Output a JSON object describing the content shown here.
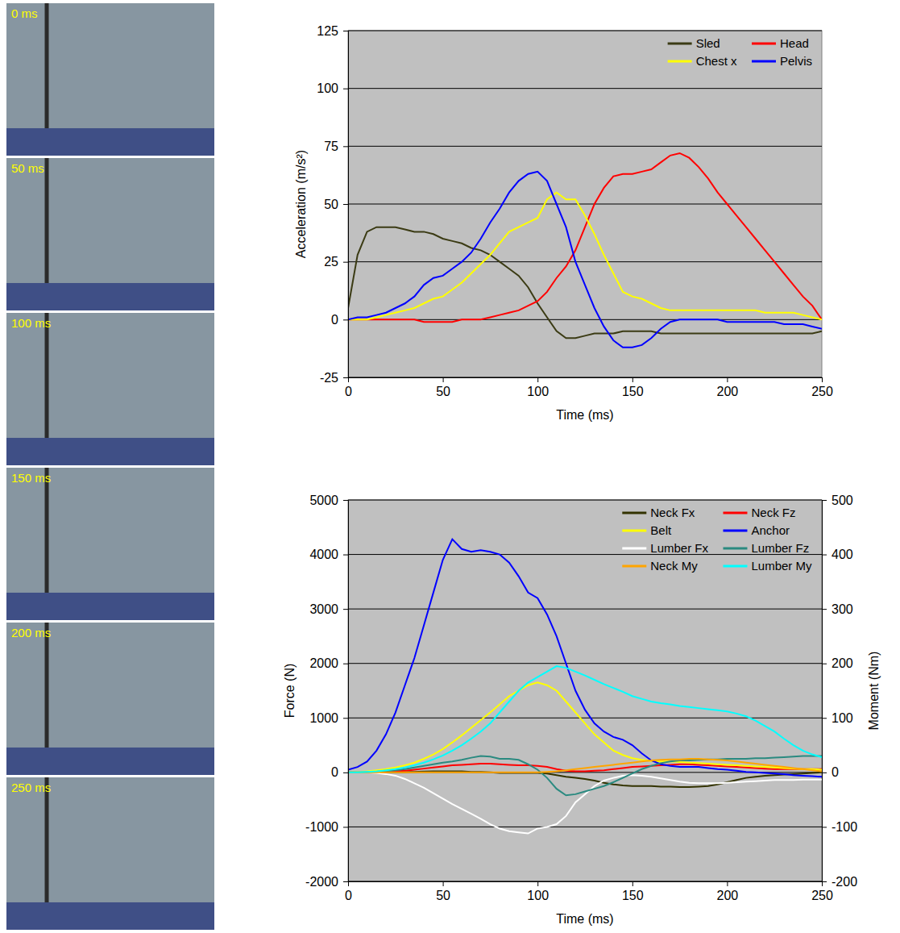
{
  "photos": {
    "labels": [
      "0 ms",
      "50 ms",
      "100 ms",
      "150 ms",
      "200 ms",
      "250 ms"
    ]
  },
  "chart_data": [
    {
      "type": "line",
      "xlabel": "Time (ms)",
      "ylabel": "Acceleration (m/s²)",
      "xlim": [
        0,
        250
      ],
      "xticks": [
        0,
        50,
        100,
        150,
        200,
        250
      ],
      "ylim": [
        -25,
        125
      ],
      "yticks": [
        -25,
        0,
        25,
        50,
        75,
        100,
        125
      ],
      "grid": true,
      "legend": "top-right",
      "x": [
        0,
        5,
        10,
        15,
        20,
        25,
        30,
        35,
        40,
        45,
        50,
        55,
        60,
        65,
        70,
        75,
        80,
        85,
        90,
        95,
        100,
        105,
        110,
        115,
        120,
        125,
        130,
        135,
        140,
        145,
        150,
        155,
        160,
        165,
        170,
        175,
        180,
        185,
        190,
        195,
        200,
        205,
        210,
        215,
        220,
        225,
        230,
        235,
        240,
        245,
        250
      ],
      "series": [
        {
          "name": "Sled",
          "color": "#3b3b14",
          "values": [
            5,
            28,
            38,
            40,
            40,
            40,
            39,
            38,
            38,
            37,
            35,
            34,
            33,
            31,
            30,
            28,
            25,
            22,
            19,
            14,
            7,
            1,
            -5,
            -8,
            -8,
            -7,
            -6,
            -6,
            -6,
            -5,
            -5,
            -5,
            -5,
            -6,
            -6,
            -6,
            -6,
            -6,
            -6,
            -6,
            -6,
            -6,
            -6,
            -6,
            -6,
            -6,
            -6,
            -6,
            -6,
            -6,
            -5
          ]
        },
        {
          "name": "Head",
          "color": "#ff0000",
          "values": [
            0,
            0,
            0,
            0,
            0,
            0,
            0,
            0,
            -1,
            -1,
            -1,
            -1,
            0,
            0,
            0,
            1,
            2,
            3,
            4,
            6,
            8,
            12,
            18,
            23,
            30,
            40,
            50,
            57,
            62,
            63,
            63,
            64,
            65,
            68,
            71,
            72,
            70,
            66,
            61,
            55,
            50,
            45,
            40,
            35,
            30,
            25,
            20,
            15,
            10,
            6,
            0
          ]
        },
        {
          "name": "Chest x",
          "color": "#ffff00",
          "values": [
            0,
            0,
            0,
            1,
            2,
            3,
            4,
            5,
            7,
            9,
            10,
            13,
            16,
            20,
            24,
            28,
            33,
            38,
            40,
            42,
            44,
            52,
            55,
            52,
            52,
            45,
            37,
            28,
            20,
            12,
            10,
            9,
            7,
            5,
            4,
            4,
            4,
            4,
            4,
            4,
            4,
            4,
            4,
            4,
            3,
            3,
            3,
            3,
            2,
            1,
            0
          ]
        },
        {
          "name": "Pelvis",
          "color": "#0000ff",
          "values": [
            0,
            1,
            1,
            2,
            3,
            5,
            7,
            10,
            15,
            18,
            19,
            22,
            25,
            29,
            35,
            42,
            48,
            55,
            60,
            63,
            64,
            60,
            50,
            40,
            25,
            15,
            5,
            -3,
            -9,
            -12,
            -12,
            -11,
            -8,
            -4,
            -1,
            0,
            0,
            0,
            0,
            0,
            -1,
            -1,
            -1,
            -1,
            -1,
            -1,
            -2,
            -2,
            -2,
            -3,
            -4
          ]
        }
      ]
    },
    {
      "type": "line",
      "xlabel": "Time (ms)",
      "ylabel": "Force (N)",
      "y2label": "Moment (Nm)",
      "xlim": [
        0,
        250
      ],
      "xticks": [
        0,
        50,
        100,
        150,
        200,
        250
      ],
      "ylim": [
        -2000,
        5000
      ],
      "yticks": [
        -2000,
        -1000,
        0,
        1000,
        2000,
        3000,
        4000,
        5000
      ],
      "y2lim": [
        -200,
        500
      ],
      "y2ticks": [
        -200,
        -100,
        0,
        100,
        200,
        300,
        400,
        500
      ],
      "grid": true,
      "legend": "top-right",
      "x": [
        0,
        5,
        10,
        15,
        20,
        25,
        30,
        35,
        40,
        45,
        50,
        55,
        60,
        65,
        70,
        75,
        80,
        85,
        90,
        95,
        100,
        105,
        110,
        115,
        120,
        125,
        130,
        135,
        140,
        145,
        150,
        155,
        160,
        165,
        170,
        175,
        180,
        185,
        190,
        195,
        200,
        205,
        210,
        215,
        220,
        225,
        230,
        235,
        240,
        245,
        250
      ],
      "series": [
        {
          "name": "Neck Fx",
          "color": "#333300",
          "values": [
            0,
            0,
            0,
            0,
            0,
            0,
            5,
            10,
            15,
            20,
            20,
            20,
            20,
            10,
            10,
            0,
            -10,
            -10,
            -10,
            -10,
            -10,
            -20,
            -50,
            -80,
            -100,
            -120,
            -150,
            -190,
            -220,
            -240,
            -250,
            -250,
            -250,
            -260,
            -260,
            -270,
            -270,
            -260,
            -250,
            -220,
            -180,
            -140,
            -100,
            -80,
            -60,
            -50,
            -40,
            -30,
            -20,
            -10,
            0
          ]
        },
        {
          "name": "Neck Fz",
          "color": "#ff0000",
          "values": [
            0,
            0,
            0,
            0,
            10,
            20,
            30,
            50,
            70,
            90,
            110,
            130,
            140,
            150,
            160,
            160,
            150,
            140,
            130,
            130,
            120,
            100,
            60,
            30,
            20,
            20,
            30,
            40,
            60,
            80,
            100,
            110,
            120,
            130,
            140,
            150,
            150,
            140,
            130,
            120,
            110,
            100,
            90,
            80,
            70,
            60,
            60,
            60,
            60,
            60,
            60
          ]
        },
        {
          "name": "Belt",
          "color": "#ffff00",
          "values": [
            0,
            10,
            20,
            40,
            60,
            90,
            130,
            180,
            250,
            330,
            430,
            550,
            680,
            820,
            960,
            1100,
            1250,
            1400,
            1500,
            1600,
            1650,
            1600,
            1500,
            1300,
            1100,
            900,
            700,
            550,
            400,
            320,
            260,
            230,
            210,
            200,
            200,
            190,
            180,
            170,
            160,
            150,
            140,
            130,
            120,
            110,
            100,
            90,
            80,
            70,
            60,
            60,
            50
          ]
        },
        {
          "name": "Anchor",
          "color": "#0000ff",
          "values": [
            50,
            100,
            200,
            400,
            700,
            1100,
            1600,
            2100,
            2700,
            3300,
            3900,
            4280,
            4100,
            4050,
            4080,
            4050,
            4000,
            3850,
            3600,
            3300,
            3200,
            2900,
            2500,
            2000,
            1500,
            1150,
            900,
            750,
            650,
            600,
            500,
            350,
            220,
            150,
            120,
            100,
            100,
            100,
            80,
            60,
            50,
            30,
            10,
            0,
            -10,
            -20,
            -30,
            -50,
            -60,
            -70,
            -80
          ]
        },
        {
          "name": "Lumber Fx",
          "color": "#ffffff",
          "values": [
            0,
            0,
            0,
            -10,
            -30,
            -60,
            -120,
            -200,
            -280,
            -380,
            -480,
            -580,
            -670,
            -760,
            -850,
            -950,
            -1030,
            -1080,
            -1100,
            -1120,
            -1030,
            -1000,
            -950,
            -800,
            -550,
            -400,
            -250,
            -150,
            -100,
            -60,
            -50,
            -60,
            -80,
            -110,
            -140,
            -170,
            -190,
            -200,
            -200,
            -200,
            -190,
            -180,
            -170,
            -160,
            -150,
            -140,
            -140,
            -140,
            -130,
            -130,
            -130
          ]
        },
        {
          "name": "Lumber Fz",
          "color": "#2a8a80",
          "values": [
            0,
            0,
            5,
            10,
            20,
            40,
            60,
            90,
            120,
            150,
            180,
            200,
            230,
            270,
            300,
            290,
            250,
            250,
            230,
            150,
            50,
            -100,
            -300,
            -420,
            -400,
            -350,
            -300,
            -250,
            -180,
            -100,
            -20,
            60,
            120,
            170,
            200,
            220,
            220,
            230,
            240,
            240,
            250,
            250,
            250,
            260,
            260,
            270,
            280,
            290,
            300,
            300,
            300
          ]
        },
        {
          "name": "Neck My",
          "color": "#ffa500",
          "axis": "y2",
          "values": [
            0,
            0,
            0,
            0,
            0,
            0,
            0,
            0,
            0,
            0,
            0,
            0,
            0,
            0,
            0,
            0,
            0,
            0,
            0,
            0,
            0,
            1,
            2,
            4,
            6,
            8,
            10,
            12,
            14,
            16,
            18,
            20,
            22,
            23,
            24,
            24,
            25,
            25,
            24,
            23,
            22,
            20,
            18,
            16,
            14,
            12,
            10,
            8,
            6,
            4,
            2
          ]
        },
        {
          "name": "Lumber My",
          "color": "#00ffff",
          "axis": "y2",
          "values": [
            0,
            0,
            1,
            2,
            4,
            6,
            9,
            13,
            18,
            24,
            31,
            40,
            50,
            62,
            75,
            90,
            110,
            130,
            150,
            165,
            175,
            185,
            195,
            192,
            185,
            178,
            170,
            162,
            155,
            148,
            140,
            135,
            130,
            127,
            125,
            122,
            120,
            118,
            116,
            114,
            112,
            108,
            103,
            95,
            85,
            75,
            62,
            50,
            40,
            33,
            28
          ]
        }
      ]
    }
  ]
}
